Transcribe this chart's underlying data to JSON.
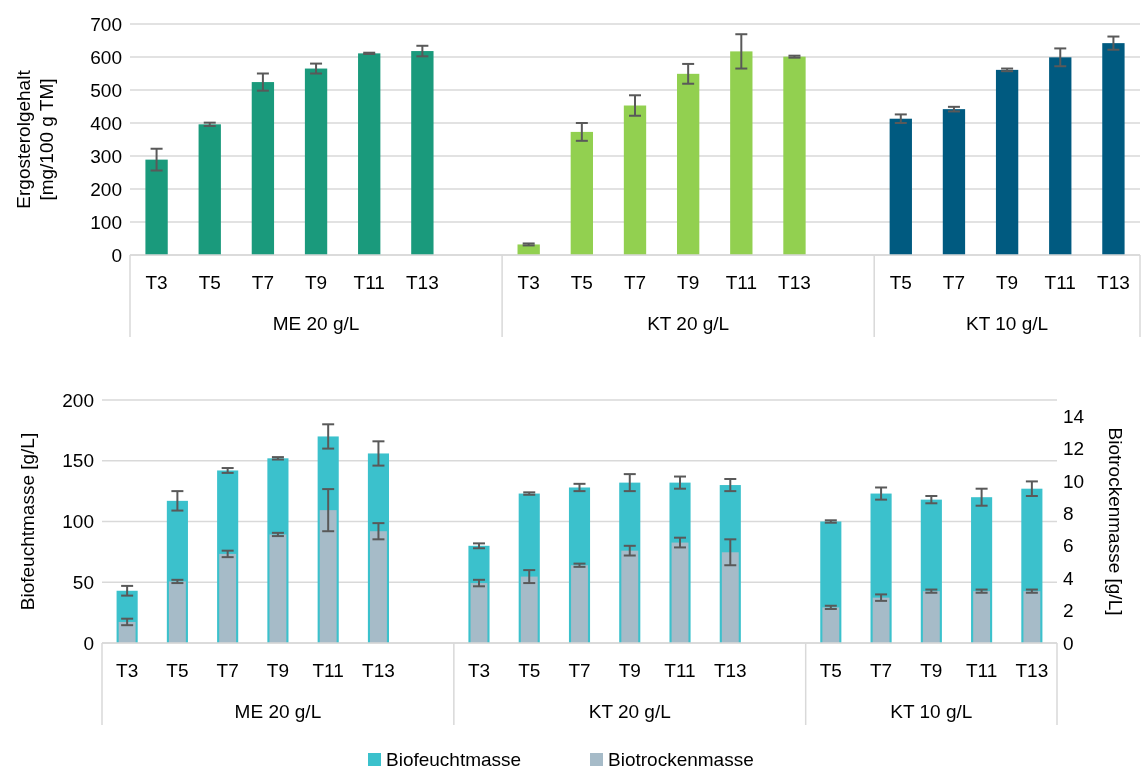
{
  "chart_data": [
    {
      "type": "bar",
      "ylabel": "Ergosterolgehalt\n[mg/100 g TM]",
      "categories": [
        "T3",
        "T5",
        "T7",
        "T9",
        "T11",
        "T13",
        null,
        "T3",
        "T5",
        "T7",
        "T9",
        "T11",
        "T13",
        null,
        "T5",
        "T7",
        "T9",
        "T11",
        "T13"
      ],
      "values": [
        289,
        396,
        524,
        565,
        611,
        618,
        null,
        32,
        373,
        453,
        549,
        617,
        601,
        null,
        413,
        442,
        561,
        599,
        642
      ],
      "errors": [
        33,
        5,
        26,
        15,
        2,
        16,
        null,
        3,
        27,
        31,
        30,
        52,
        3,
        null,
        13,
        7,
        4,
        27,
        20
      ],
      "colors": [
        "#1a9a7c",
        "#1a9a7c",
        "#1a9a7c",
        "#1a9a7c",
        "#1a9a7c",
        "#1a9a7c",
        null,
        "#92d050",
        "#92d050",
        "#92d050",
        "#92d050",
        "#92d050",
        "#92d050",
        null,
        "#005a80",
        "#005a80",
        "#005a80",
        "#005a80",
        "#005a80"
      ],
      "ylim": [
        0,
        700
      ],
      "yticks": [
        0,
        100,
        200,
        300,
        400,
        500,
        600,
        700
      ],
      "grid": "y",
      "annotations": [
        "ME 20 g/L",
        "KT 20 g/L",
        "KT 10 g/L"
      ]
    },
    {
      "type": "bar",
      "ylabel": "Biofeuchtmasse [g/L]",
      "y2label": "Biotrockenmasse [g/L]",
      "categories": [
        "T3",
        "T5",
        "T7",
        "T9",
        "T11",
        "T13",
        null,
        "T3",
        "T5",
        "T7",
        "T9",
        "T11",
        "T13",
        null,
        "T5",
        "T7",
        "T9",
        "T11",
        "T13"
      ],
      "series": [
        {
          "name": "Biofeuchtmasse",
          "color": "#3bc1cc",
          "values": [
            43,
            117,
            142,
            152,
            170,
            156,
            null,
            80,
            123,
            128,
            132,
            132,
            130,
            null,
            100,
            123,
            118,
            120,
            127
          ],
          "errors": [
            4,
            8,
            2,
            1,
            10,
            10,
            null,
            2,
            1,
            3,
            7,
            5,
            5,
            null,
            1,
            5,
            3,
            7,
            6
          ]
        },
        {
          "name": "Biotrockenmasse",
          "color": "#a6bbc8",
          "axis": "y2",
          "values": [
            1.3,
            3.8,
            5.5,
            6.7,
            8.2,
            6.9,
            null,
            3.7,
            4.1,
            4.8,
            5.7,
            6.2,
            5.6,
            null,
            2.2,
            2.8,
            3.2,
            3.2,
            3.2
          ],
          "errors": [
            0.2,
            0.1,
            0.2,
            0.1,
            1.3,
            0.5,
            null,
            0.2,
            0.4,
            0.1,
            0.3,
            0.3,
            0.8,
            null,
            0.1,
            0.2,
            0.1,
            0.1,
            0.1
          ]
        }
      ],
      "ylim": [
        0,
        200
      ],
      "yticks": [
        0,
        50,
        100,
        150,
        200
      ],
      "y2lim": [
        0,
        15
      ],
      "y2ticks": [
        0,
        2,
        4,
        6,
        8,
        10,
        12,
        14
      ],
      "grid": "y",
      "legend": "bottom",
      "annotations": [
        "ME 20 g/L",
        "KT 20 g/L",
        "KT 10 g/L"
      ]
    }
  ]
}
